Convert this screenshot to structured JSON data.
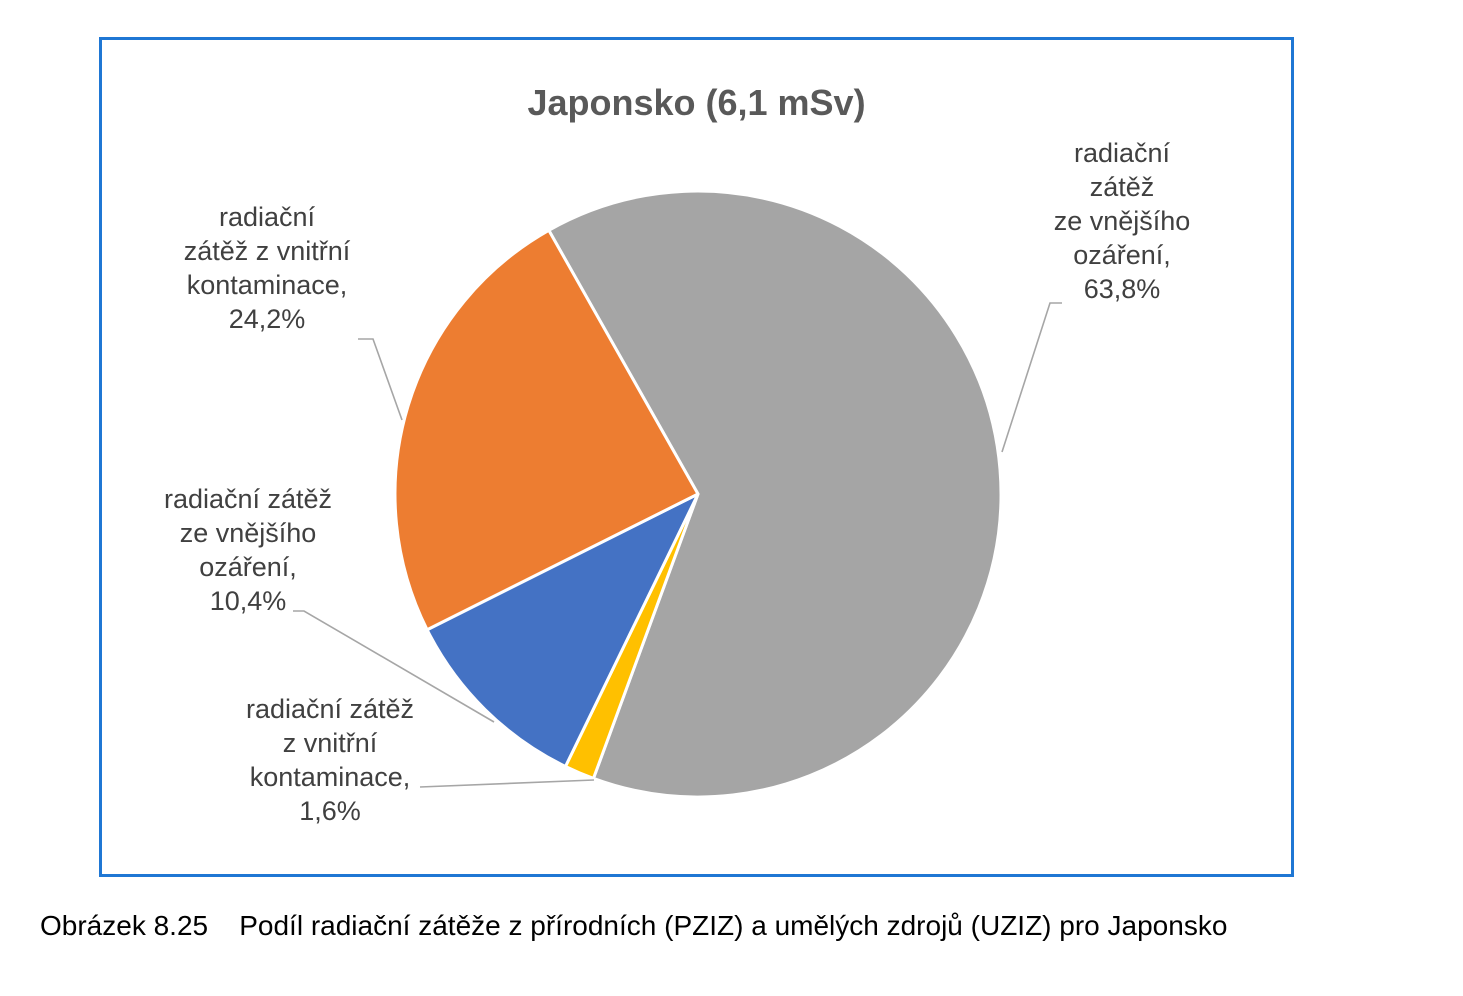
{
  "chart_data": {
    "type": "pie",
    "title": "Japonsko (6,1 mSv)",
    "slices": [
      {
        "label": [
          "radiační",
          "zátěž",
          "ze vnějšího",
          "ozáření,",
          "63,8%"
        ],
        "value": 63.8,
        "color": "#a5a5a5"
      },
      {
        "label": [
          "radiační zátěž",
          "z vnitřní",
          "kontaminace,",
          "1,6%"
        ],
        "value": 1.6,
        "color": "#ffc000"
      },
      {
        "label": [
          "radiační zátěž",
          "ze vnějšího",
          "ozáření,",
          "10,4%"
        ],
        "value": 10.4,
        "color": "#4472c4"
      },
      {
        "label": [
          "radiační",
          "zátěž z vnitřní",
          "kontaminace,",
          "24,2%"
        ],
        "value": 24.2,
        "color": "#ed7d31"
      }
    ]
  },
  "caption": {
    "number": "Obrázek 8.25",
    "text": "Podíl radiační zátěže z přírodních (PZIZ) a umělých zdrojů (UZIZ) pro Japonsko"
  }
}
